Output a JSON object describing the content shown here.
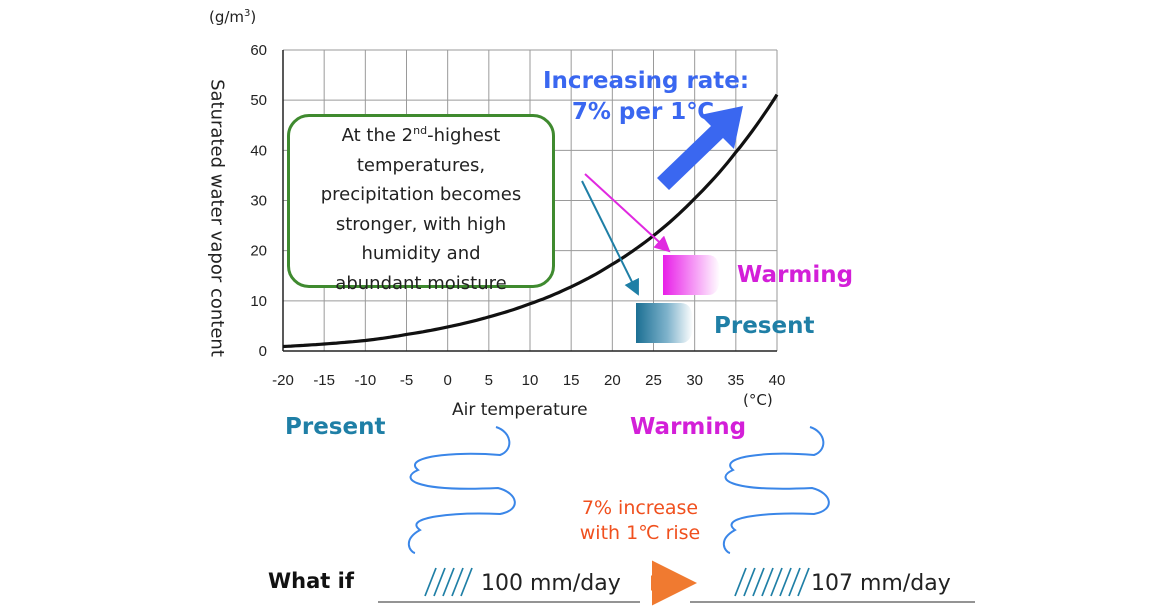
{
  "chart_data": {
    "type": "line",
    "xlabel": "Air temperature",
    "x_unit": "(°C)",
    "ylabel": "Saturated water vapor content",
    "y_unit_base": "(g/m",
    "y_unit_sup": "3",
    "y_unit_end": ")",
    "xlim": [
      -20,
      40
    ],
    "ylim": [
      0,
      60
    ],
    "x_ticks": [
      -20,
      -15,
      -10,
      -5,
      0,
      5,
      10,
      15,
      20,
      25,
      30,
      35,
      40
    ],
    "y_ticks": [
      0,
      10,
      20,
      30,
      40,
      50,
      60
    ],
    "grid": true,
    "series": [
      {
        "x": [
          -20,
          -15,
          -10,
          -5,
          0,
          5,
          10,
          15,
          20,
          25,
          30,
          35,
          40
        ],
        "values": [
          0.9,
          1.4,
          2.1,
          3.3,
          4.8,
          6.8,
          9.4,
          12.8,
          17.3,
          23.0,
          30.4,
          39.6,
          51.1
        ]
      }
    ]
  },
  "callout": {
    "line1_pre": "At the 2",
    "line1_sup": "nd",
    "line1_post": "-highest",
    "line2": "temperatures,",
    "line3": "precipitation becomes",
    "line4": "stronger, with high",
    "line5": "humidity and",
    "line6": "abundant moisture"
  },
  "rate": {
    "line1": "Increasing rate:",
    "line2": "7% per 1℃"
  },
  "labels": {
    "warming": "Warming",
    "present": "Present"
  },
  "bottom": {
    "present_label": "Present",
    "warming_label": "Warming",
    "increase_line1": "7% increase",
    "increase_line2": "with 1℃ rise",
    "what_if": "What if",
    "present_amount": "100 mm/day",
    "warming_amount": "107 mm/day"
  },
  "colors": {
    "curve": "#111111",
    "grid": "#9a9a9a",
    "rate_arrow": "#3a67f0",
    "warming": "#d31fd8",
    "present": "#1f7fa6",
    "callout_border": "#3f8a2f",
    "cloud": "#3a86e8",
    "rain": "#1f7fa6",
    "increase_arrow": "#f07a30"
  }
}
